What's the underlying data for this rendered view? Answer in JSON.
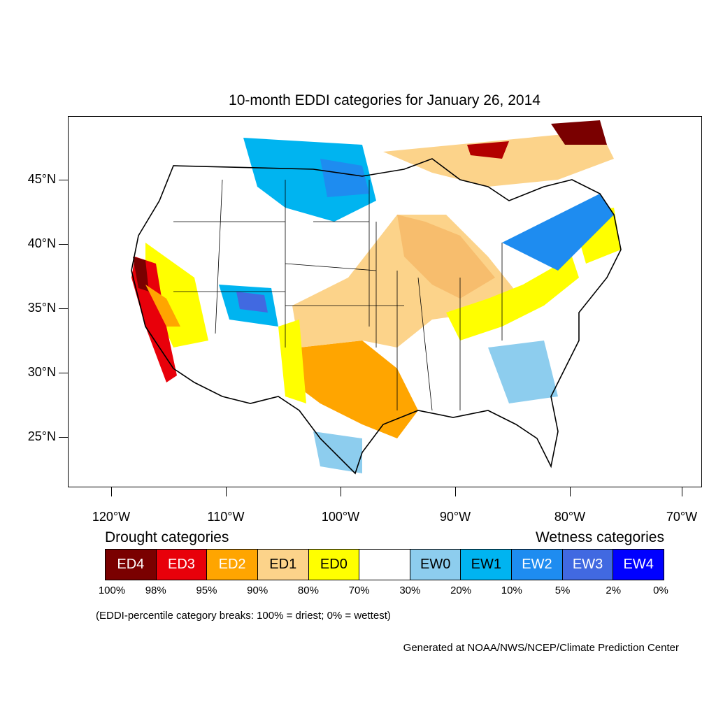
{
  "title": "10-month EDDI categories for January 26, 2014",
  "lat_labels": [
    "45°N",
    "40°N",
    "35°N",
    "30°N",
    "25°N"
  ],
  "lon_labels": [
    "120°W",
    "110°W",
    "100°W",
    "90°W",
    "80°W",
    "70°W"
  ],
  "legend": {
    "drought_heading": "Drought categories",
    "wetness_heading": "Wetness categories",
    "categories": [
      {
        "label": "ED4",
        "color": "#7a0000",
        "text_color": "#ffffff"
      },
      {
        "label": "ED3",
        "color": "#e8000a",
        "text_color": "#ffffff"
      },
      {
        "label": "ED2",
        "color": "#ffa500",
        "text_color": "#ffffff"
      },
      {
        "label": "ED1",
        "color": "#fcd38a",
        "text_color": "#000000"
      },
      {
        "label": "ED0",
        "color": "#ffff00",
        "text_color": "#000000"
      },
      {
        "label": "",
        "color": "#ffffff",
        "text_color": "#000000"
      },
      {
        "label": "EW0",
        "color": "#8dcdee",
        "text_color": "#000000"
      },
      {
        "label": "EW1",
        "color": "#00b4f0",
        "text_color": "#000000"
      },
      {
        "label": "EW2",
        "color": "#1e8cf0",
        "text_color": "#ffffff"
      },
      {
        "label": "EW3",
        "color": "#4169e1",
        "text_color": "#ffffff"
      },
      {
        "label": "EW4",
        "color": "#0000ff",
        "text_color": "#ffffff"
      }
    ],
    "percentiles": [
      "100%",
      "98%",
      "95%",
      "90%",
      "80%",
      "70%",
      "30%",
      "20%",
      "10%",
      "5%",
      "2%",
      "0%"
    ]
  },
  "note": "(EDDI-percentile category breaks: 100% = driest; 0% = wettest)",
  "credit": "Generated at NOAA/NWS/NCEP/Climate Prediction Center"
}
